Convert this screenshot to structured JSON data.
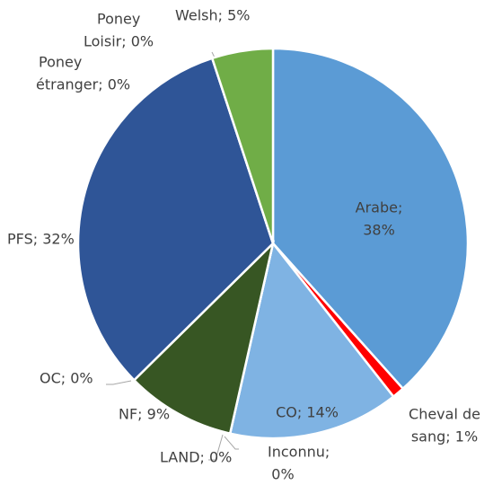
{
  "chart_data": {
    "type": "pie",
    "categories": [
      "Arabe",
      "Cheval de sang",
      "CO",
      "Inconnu",
      "LAND",
      "NF",
      "OC",
      "PFS",
      "Poney étranger",
      "Poney Loisir",
      "Welsh"
    ],
    "values": [
      38,
      1,
      14,
      0,
      0,
      9,
      0,
      32,
      0,
      0,
      5
    ],
    "value_labels": [
      [
        "Arabe;",
        "38%"
      ],
      [
        "Cheval de",
        "sang; 1%"
      ],
      [
        "CO; 14%"
      ],
      [
        "Inconnu;",
        "0%"
      ],
      [
        "LAND; 0%"
      ],
      [
        "NF; 9%"
      ],
      [
        "OC; 0%"
      ],
      [
        "PFS; 32%"
      ],
      [
        "Poney",
        "étranger; 0%"
      ],
      [
        "Poney",
        "Loisir; 0%"
      ],
      [
        "Welsh; 5%"
      ]
    ],
    "colors": [
      "#5b9bd5",
      "#ff0000",
      "#7fb3e3",
      "#a5a5a5",
      "#c0c0c0",
      "#375623",
      "#888888",
      "#2f5597",
      "#999999",
      "#aaaaaa",
      "#70ad47"
    ]
  }
}
